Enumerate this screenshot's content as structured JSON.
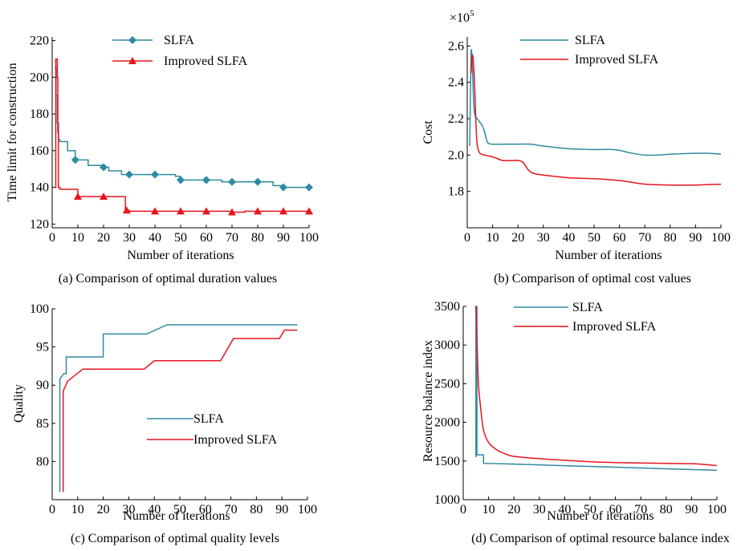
{
  "chart_data": [
    {
      "type": "line",
      "caption": "(a) Comparison of optimal duration values",
      "xlabel": "Number of iterations",
      "ylabel": "Time limit for construction",
      "xlim": [
        0,
        100
      ],
      "ylim": [
        118,
        222
      ],
      "xticks": [
        0,
        10,
        20,
        30,
        40,
        50,
        60,
        70,
        80,
        90,
        100
      ],
      "yticks": [
        120,
        140,
        160,
        180,
        200,
        220
      ],
      "legend_position": "top-center",
      "series": [
        {
          "name": "SLFA",
          "color": "#2e8aa0",
          "marker": "diamond",
          "step": true,
          "x": [
            1,
            1.5,
            2,
            2.5,
            3,
            5,
            6,
            9,
            10,
            14,
            18,
            20,
            22,
            27,
            30,
            38,
            40,
            48,
            50,
            52,
            60,
            66,
            70,
            78,
            80,
            86,
            90,
            96,
            100
          ],
          "y": [
            205,
            190,
            175,
            166,
            165,
            165,
            160,
            155,
            155,
            152,
            152,
            151,
            149,
            147,
            147,
            147,
            147,
            146,
            144,
            144,
            144,
            143,
            143,
            143,
            143,
            141,
            140,
            140,
            140
          ],
          "marker_x": [
            9,
            20,
            30,
            40,
            50,
            60,
            70,
            80,
            90,
            100
          ]
        },
        {
          "name": "Improved SLFA",
          "color": "#e8141e",
          "marker": "triangle",
          "step": true,
          "x": [
            1,
            1.4,
            2,
            2.2,
            2.4,
            3,
            7,
            10,
            20,
            27.5,
            28.5,
            30,
            40,
            50,
            60,
            65,
            70,
            75,
            80,
            90,
            100
          ],
          "y": [
            140,
            210,
            200,
            170,
            140,
            139,
            139,
            135,
            135,
            135,
            127.5,
            127,
            127,
            127,
            127,
            127,
            126.5,
            127,
            127,
            127,
            127
          ],
          "marker_x": [
            10,
            20,
            29,
            40,
            50,
            60,
            70,
            80,
            90,
            100
          ]
        }
      ]
    },
    {
      "type": "line",
      "caption": "(b) Comparison of optimal cost values",
      "xlabel": "Number of iterations",
      "ylabel": "Cost",
      "scale_label": "×10",
      "scale_exponent": "5",
      "xlim": [
        0,
        100
      ],
      "ylim": [
        1.6,
        2.65
      ],
      "xticks": [
        0,
        10,
        20,
        30,
        40,
        50,
        60,
        70,
        80,
        90,
        100
      ],
      "yticks": [
        "1.8",
        "2.0",
        "2.2",
        "2.4",
        "2.6"
      ],
      "legend_position": "top-center",
      "series": [
        {
          "name": "SLFA",
          "color": "#2e8aa0",
          "x": [
            1,
            1.5,
            2,
            2.5,
            3,
            4,
            5,
            6,
            7,
            8,
            10,
            15,
            20,
            25,
            30,
            40,
            50,
            58,
            65,
            70,
            75,
            80,
            90,
            95,
            100
          ],
          "y": [
            2.05,
            2.55,
            2.5,
            2.3,
            2.22,
            2.2,
            2.18,
            2.16,
            2.12,
            2.07,
            2.06,
            2.06,
            2.06,
            2.06,
            2.05,
            2.035,
            2.03,
            2.03,
            2.01,
            2.0,
            2.0,
            2.005,
            2.01,
            2.01,
            2.005
          ],
          "smooth": true
        },
        {
          "name": "Improved SLFA",
          "color": "#e8141e",
          "x": [
            1.5,
            2,
            2.5,
            3,
            3.5,
            4,
            5,
            7,
            10,
            12,
            14,
            18,
            20,
            22,
            24,
            26,
            30,
            40,
            50,
            60,
            65,
            70,
            80,
            90,
            100
          ],
          "y": [
            2.45,
            2.55,
            2.5,
            2.35,
            2.15,
            2.05,
            2.01,
            2.0,
            1.99,
            1.98,
            1.97,
            1.97,
            1.97,
            1.96,
            1.92,
            1.9,
            1.89,
            1.875,
            1.87,
            1.86,
            1.85,
            1.84,
            1.835,
            1.835,
            1.84
          ],
          "smooth": true
        }
      ]
    },
    {
      "type": "line",
      "caption": "(c) Comparison of optimal quality levels",
      "xlabel": "Number of iterations",
      "ylabel": "Quality",
      "xlim": [
        0,
        100
      ],
      "ylim": [
        75,
        100
      ],
      "xticks": [
        0,
        10,
        20,
        30,
        40,
        50,
        60,
        70,
        80,
        90,
        100
      ],
      "yticks": [
        80,
        85,
        90,
        95,
        100
      ],
      "legend_position": "center",
      "series": [
        {
          "name": "SLFA",
          "color": "#2e8aa0",
          "step": true,
          "x": [
            3,
            3.2,
            4.5,
            5.5,
            20,
            37,
            45,
            96
          ],
          "y": [
            76,
            90.8,
            91.5,
            93.7,
            96.7,
            96.7,
            97.9,
            97.9
          ],
          "seg": [
            [
              3,
              76
            ],
            [
              3,
              90.8
            ],
            [
              4.5,
              91.5
            ],
            [
              5.5,
              91.5
            ],
            [
              5.5,
              93.7
            ],
            [
              20,
              93.7
            ],
            [
              20,
              96.7
            ],
            [
              37,
              96.7
            ],
            [
              45,
              97.9
            ],
            [
              96,
              97.9
            ]
          ]
        },
        {
          "name": "Improved SLFA",
          "color": "#e8141e",
          "seg": [
            [
              4.3,
              76
            ],
            [
              4.3,
              89.2
            ],
            [
              6,
              90.5
            ],
            [
              12,
              92.1
            ],
            [
              36,
              92.1
            ],
            [
              40,
              93.2
            ],
            [
              66,
              93.2
            ],
            [
              71,
              96.1
            ],
            [
              89,
              96.1
            ],
            [
              91,
              97.2
            ],
            [
              96,
              97.2
            ]
          ]
        }
      ]
    },
    {
      "type": "line",
      "caption": "(d) Comparison of optimal resource balance index",
      "xlabel": "Number of iterations",
      "ylabel": "Resource balance index",
      "xlim": [
        0,
        100
      ],
      "ylim": [
        1000,
        3500
      ],
      "xticks": [
        0,
        10,
        20,
        30,
        40,
        50,
        60,
        70,
        80,
        90,
        100
      ],
      "yticks": [
        1000,
        1500,
        2000,
        2500,
        3000,
        3500
      ],
      "legend_position": "top-center",
      "series": [
        {
          "name": "SLFA",
          "color": "#2e8aa0",
          "seg": [
            [
              5,
              1550
            ],
            [
              5,
              3500
            ],
            [
              5.4,
              3500
            ],
            [
              5.4,
              1580
            ],
            [
              8,
              1580
            ],
            [
              8,
              1470
            ],
            [
              20,
              1460
            ],
            [
              40,
              1440
            ],
            [
              60,
              1420
            ],
            [
              80,
              1400
            ],
            [
              100,
              1380
            ]
          ]
        },
        {
          "name": "Improved SLFA",
          "color": "#e8141e",
          "x": [
            5,
            5.2,
            5.5,
            6,
            7,
            8,
            10,
            13,
            16,
            20,
            30,
            40,
            50,
            60,
            70,
            80,
            90,
            95,
            100
          ],
          "y": [
            3500,
            3400,
            3000,
            2500,
            2150,
            1900,
            1740,
            1650,
            1600,
            1560,
            1530,
            1510,
            1490,
            1480,
            1475,
            1470,
            1465,
            1455,
            1440
          ],
          "smooth": true
        }
      ]
    }
  ]
}
